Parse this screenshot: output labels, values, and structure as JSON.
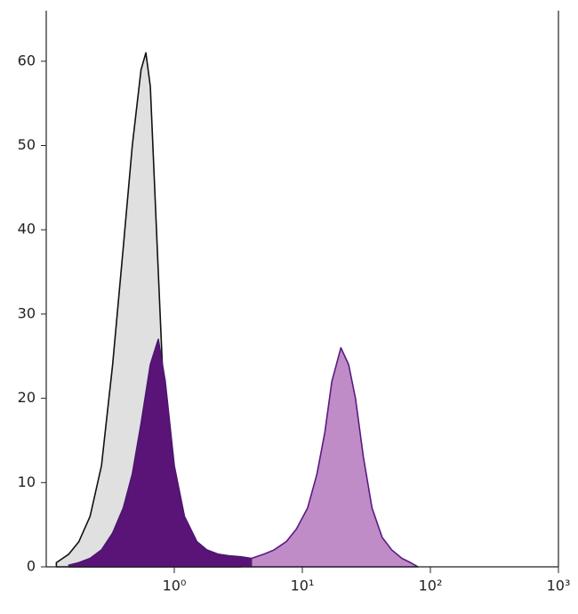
{
  "chart_data": {
    "type": "histogram-overlay",
    "xscale": "log",
    "xlim": [
      0.1,
      1000
    ],
    "ylim": [
      0,
      66
    ],
    "xticks": [
      {
        "value": 1,
        "label": "10⁰"
      },
      {
        "value": 10,
        "label": "10¹"
      },
      {
        "value": 100,
        "label": "10²"
      },
      {
        "value": 1000,
        "label": "10³"
      }
    ],
    "yticks": [
      0,
      10,
      20,
      30,
      40,
      50,
      60
    ],
    "series": [
      {
        "color": "#111111",
        "fill": "#e0e0e0",
        "x": [
          0.12,
          0.15,
          0.18,
          0.22,
          0.27,
          0.33,
          0.4,
          0.47,
          0.55,
          0.6,
          0.65,
          0.75,
          0.85,
          1.0,
          1.2,
          1.5,
          1.8,
          2.2,
          2.7,
          3.3
        ],
        "values": [
          0.5,
          1.5,
          3,
          6,
          12,
          24,
          38,
          50,
          59,
          61,
          57,
          35,
          16,
          6,
          2.5,
          1.2,
          0.8,
          0.5,
          0.3,
          0
        ]
      },
      {
        "color": "#4b1670",
        "fill": "#5a1478",
        "x": [
          0.15,
          0.18,
          0.22,
          0.27,
          0.33,
          0.4,
          0.47,
          0.55,
          0.65,
          0.75,
          0.85,
          1.0,
          1.2,
          1.5,
          1.8,
          2.2,
          2.7,
          3.3,
          4
        ],
        "values": [
          0.2,
          0.5,
          1,
          2,
          4,
          7,
          11,
          17,
          24,
          27,
          22,
          12,
          6,
          3,
          2,
          1.5,
          1.3,
          1.2,
          1.0
        ]
      },
      {
        "color": "#5a1a80",
        "fill": "#c08cc8",
        "x": [
          4,
          5,
          6,
          7.5,
          9,
          11,
          13,
          15,
          17,
          20,
          23,
          26,
          30,
          35,
          42,
          50,
          60,
          70,
          80
        ],
        "values": [
          1.0,
          1.5,
          2,
          3,
          4.5,
          7,
          11,
          16,
          22,
          26,
          24,
          20,
          13,
          7,
          3.5,
          2,
          1,
          0.5,
          0
        ]
      }
    ]
  }
}
